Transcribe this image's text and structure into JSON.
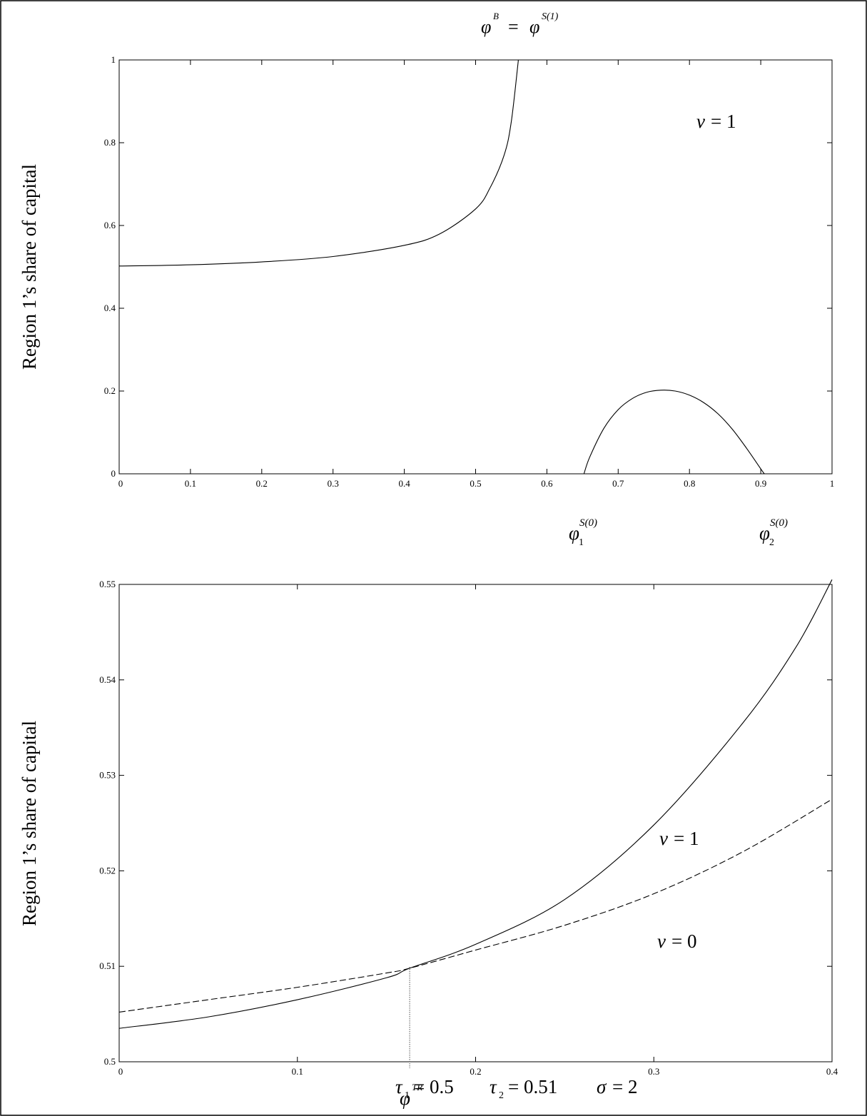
{
  "chart_data": [
    {
      "type": "line",
      "ylabel": "Region 1’s share of capital",
      "xlim": [
        0,
        1
      ],
      "ylim": [
        0,
        1
      ],
      "x_ticks": [
        "0",
        "0.1",
        "0.2",
        "0.3",
        "0.4",
        "0.5",
        "0.6",
        "0.7",
        "0.8",
        "0.9",
        "1"
      ],
      "y_ticks": [
        "0",
        "0.2",
        "0.4",
        "0.6",
        "0.8",
        "1"
      ],
      "grid": false,
      "series": [
        {
          "name": "",
          "style": "solid",
          "x": [
            0,
            0.1,
            0.2,
            0.3,
            0.4,
            0.45,
            0.5,
            0.52,
            0.54,
            0.55,
            0.56
          ],
          "y": [
            0.502,
            0.505,
            0.512,
            0.525,
            0.552,
            0.58,
            0.64,
            0.69,
            0.77,
            0.85,
            1.0
          ]
        },
        {
          "name": "",
          "style": "solid",
          "x": [
            0.652,
            0.66,
            0.68,
            0.7,
            0.72,
            0.74,
            0.76,
            0.78,
            0.8,
            0.82,
            0.84,
            0.86,
            0.88,
            0.9,
            0.905
          ],
          "y": [
            0,
            0.04,
            0.11,
            0.155,
            0.182,
            0.197,
            0.202,
            0.2,
            0.19,
            0.172,
            0.145,
            0.108,
            0.062,
            0.012,
            0
          ]
        }
      ],
      "annotations": {
        "title_lhs": "φ",
        "title_lhs_sup": "B",
        "title_eq": "=",
        "title_rhs": "φ",
        "title_rhs_sup": "S(1)",
        "nu_sym": "ν",
        "nu_eq": "= 1",
        "phi1_base": "φ",
        "phi1_sub": "1",
        "phi1_sup": "S(0)",
        "phi2_base": "φ",
        "phi2_sub": "2",
        "phi2_sup": "S(0)"
      }
    },
    {
      "type": "line",
      "ylabel": "Region 1’s share of capital",
      "xlim": [
        0,
        0.4
      ],
      "ylim": [
        0.5,
        0.55
      ],
      "x_ticks": [
        "0",
        "0.1",
        "0.2",
        "0.3",
        "0.4"
      ],
      "y_ticks": [
        "0.5",
        "0.51",
        "0.52",
        "0.53",
        "0.54",
        "0.55"
      ],
      "grid": false,
      "marker_line_x": 0.163,
      "series": [
        {
          "name": "ν = 1",
          "style": "solid",
          "x": [
            0,
            0.05,
            0.1,
            0.15,
            0.163,
            0.2,
            0.25,
            0.3,
            0.35,
            0.38,
            0.4
          ],
          "y": [
            0.5035,
            0.5047,
            0.5065,
            0.5088,
            0.5098,
            0.5123,
            0.517,
            0.5248,
            0.5355,
            0.5435,
            0.5505
          ]
        },
        {
          "name": "ν = 0",
          "style": "dashed",
          "x": [
            0,
            0.05,
            0.1,
            0.15,
            0.163,
            0.2,
            0.25,
            0.3,
            0.35,
            0.4
          ],
          "y": [
            0.5052,
            0.5065,
            0.5078,
            0.5093,
            0.5098,
            0.5117,
            0.5143,
            0.5176,
            0.522,
            0.5275
          ]
        }
      ],
      "annotations": {
        "nu1_sym": "ν",
        "nu1_eq": "= 1",
        "nu0_sym": "ν",
        "nu0_eq": "= 0",
        "phitr_base": "φ",
        "phitr_sup": "TR"
      }
    }
  ],
  "caption": {
    "tau1_sym": "τ",
    "tau1_sub": "1",
    "tau1_val": "= 0.5",
    "tau2_sym": "τ",
    "tau2_sub": "2",
    "tau2_val": "= 0.51",
    "sigma_sym": "σ",
    "sigma_val": "= 2"
  }
}
